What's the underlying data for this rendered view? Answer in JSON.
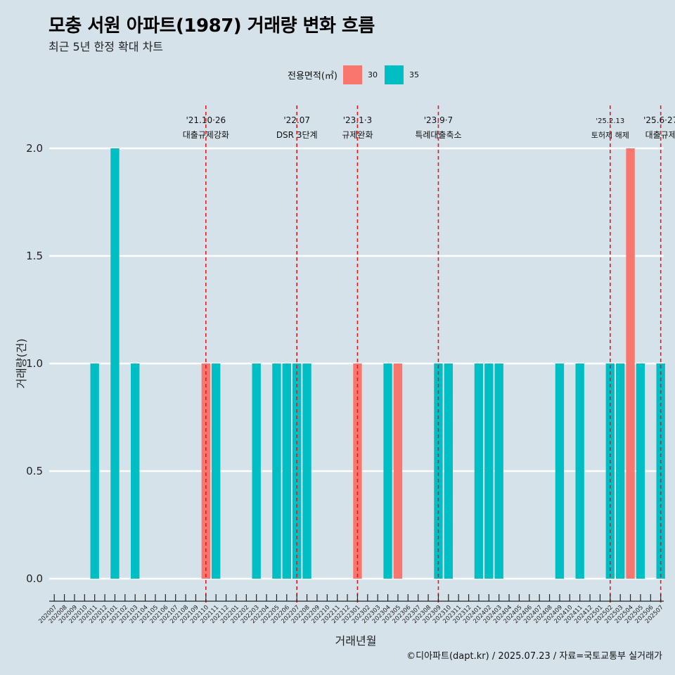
{
  "chart_data": {
    "type": "bar",
    "title": "모충 서원 아파트(1987) 거래량 변화 흐름",
    "subtitle": "최근 5년 한정 확대 차트",
    "xlabel": "거래년월",
    "ylabel": "거래량(건)",
    "ylim": [
      0,
      2
    ],
    "y_ticks": [
      "0.0",
      "0.5",
      "1.0",
      "1.5",
      "2.0"
    ],
    "grid": true,
    "legend": {
      "title": "전용면적(㎡)",
      "position": "top",
      "entries": [
        {
          "name": "30",
          "color": "#F8766D"
        },
        {
          "name": "35",
          "color": "#00BFC4"
        }
      ]
    },
    "categories": [
      "202007",
      "202008",
      "202009",
      "202010",
      "202011",
      "202012",
      "202101",
      "202102",
      "202103",
      "202104",
      "202105",
      "202106",
      "202107",
      "202108",
      "202109",
      "202110",
      "202111",
      "202112",
      "202201",
      "202202",
      "202203",
      "202204",
      "202205",
      "202206",
      "202207",
      "202208",
      "202209",
      "202210",
      "202211",
      "202212",
      "202301",
      "202302",
      "202303",
      "202304",
      "202305",
      "202306",
      "202307",
      "202308",
      "202309",
      "202310",
      "202311",
      "202312",
      "202401",
      "202402",
      "202403",
      "202404",
      "202405",
      "202406",
      "202407",
      "202408",
      "202409",
      "202410",
      "202411",
      "202412",
      "202501",
      "202502",
      "202503",
      "202504",
      "202505",
      "202506",
      "202507"
    ],
    "series": [
      {
        "name": "30",
        "color": "#F8766D",
        "values": [
          0,
          0,
          0,
          0,
          0,
          0,
          0,
          0,
          0,
          0,
          0,
          0,
          0,
          0,
          0,
          1,
          0,
          0,
          0,
          0,
          0,
          0,
          0,
          0,
          0,
          0,
          0,
          0,
          0,
          0,
          1,
          0,
          0,
          0,
          1,
          0,
          0,
          0,
          0,
          0,
          0,
          0,
          0,
          0,
          0,
          0,
          0,
          0,
          0,
          0,
          0,
          0,
          0,
          0,
          0,
          0,
          0,
          2,
          0,
          0,
          0
        ]
      },
      {
        "name": "35",
        "color": "#00BFC4",
        "values": [
          0,
          0,
          0,
          0,
          1,
          0,
          2,
          0,
          1,
          0,
          0,
          0,
          0,
          0,
          0,
          0,
          1,
          0,
          0,
          0,
          1,
          0,
          1,
          1,
          1,
          1,
          0,
          0,
          0,
          0,
          0,
          0,
          0,
          1,
          0,
          0,
          0,
          0,
          1,
          1,
          0,
          0,
          1,
          1,
          1,
          0,
          0,
          0,
          0,
          0,
          1,
          0,
          1,
          0,
          0,
          1,
          1,
          0,
          1,
          0,
          1
        ]
      }
    ],
    "annotations": [
      {
        "date": "'21.10·26",
        "label": "대출규제강화",
        "category": "202110"
      },
      {
        "date": "'22.07",
        "label": "DSR 3단계",
        "category": "202207"
      },
      {
        "date": "'23.1·3",
        "label": "규제완화",
        "category": "202301"
      },
      {
        "date": "'23.9·7",
        "label": "특례대출축소",
        "category": "202309"
      },
      {
        "date": "'25.2.13",
        "label": "토허제 해제",
        "category": "202502"
      },
      {
        "date": "'25.6·27",
        "label": "대출규제",
        "category": "202507"
      }
    ],
    "caption": "©디아파트(dapt.kr) / 2025.07.23 / 자료=국토교통부 실거래가"
  }
}
